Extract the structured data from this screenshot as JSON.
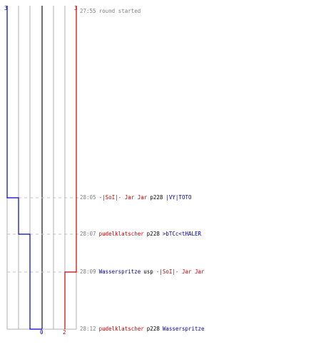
{
  "teams": {
    "blue": {
      "color": "#0000cc",
      "start_score": "3",
      "end_score": "0",
      "text_color": "#000099"
    },
    "red": {
      "color": "#cc0000",
      "start_score": "3",
      "end_score": "2",
      "text_color": "#cc0000"
    }
  },
  "colors": {
    "grid": "#b0b0b0",
    "center": "#404040",
    "dash": "#c0c0c0",
    "time": "#808080"
  },
  "events": [
    {
      "time": "27:55",
      "info": "round started"
    },
    {
      "time": "28:05",
      "killer": "-|SoI|- Jar Jar",
      "killer_team": "red",
      "weapon": "p228",
      "victim": "|VY|TOTO",
      "victim_team": "blue"
    },
    {
      "time": "28:07",
      "killer": "pudelklatscher",
      "killer_team": "red",
      "weapon": "p228",
      "victim": ">bTCc<tHALER",
      "victim_team": "blue"
    },
    {
      "time": "28:09",
      "killer": "Wasserspritze",
      "killer_team": "blue",
      "weapon": "usp",
      "victim": "-|SoI|- Jar Jar",
      "victim_team": "red"
    },
    {
      "time": "28:12",
      "killer": "pudelklatscher",
      "killer_team": "red",
      "weapon": "p228",
      "victim": "Wasserspritze",
      "victim_team": "blue"
    }
  ]
}
